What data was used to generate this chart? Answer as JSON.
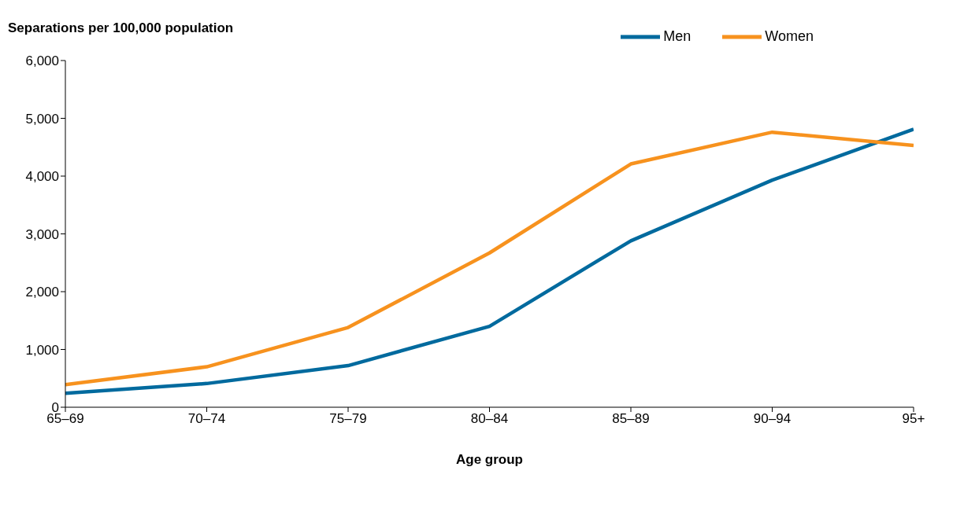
{
  "chart_data": {
    "type": "line",
    "ylabel": "Separations per 100,000 population",
    "xlabel": "Age group",
    "categories": [
      "65–69",
      "70–74",
      "75–79",
      "80–84",
      "85–89",
      "90–94",
      "95+"
    ],
    "series": [
      {
        "name": "Men",
        "color": "#006a9e",
        "values": [
          240,
          410,
          720,
          1400,
          2880,
          3930,
          4810
        ]
      },
      {
        "name": "Women",
        "color": "#f7921e",
        "values": [
          390,
          700,
          1380,
          2670,
          4210,
          4760,
          4530
        ]
      }
    ],
    "ylim": [
      0,
      6000
    ],
    "yticks": [
      {
        "value": 0,
        "label": "0"
      },
      {
        "value": 1000,
        "label": "1,000"
      },
      {
        "value": 2000,
        "label": "2,000"
      },
      {
        "value": 3000,
        "label": "3,000"
      },
      {
        "value": 4000,
        "label": "4,000"
      },
      {
        "value": 5000,
        "label": "5,000"
      },
      {
        "value": 6000,
        "label": "6,000"
      }
    ],
    "grid": false,
    "legend": "top right",
    "marker": "none",
    "line_style": "solid"
  }
}
